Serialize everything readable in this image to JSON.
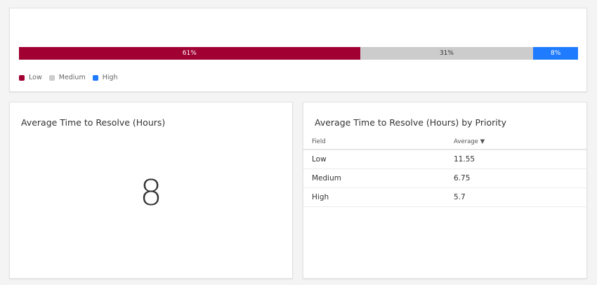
{
  "distribution": {
    "segments": [
      {
        "name": "Low",
        "percent": 61,
        "label": "61%",
        "color": "#a10033",
        "text_color": "#ffffff"
      },
      {
        "name": "Medium",
        "percent": 31,
        "label": "31%",
        "color": "#cccccc",
        "text_color": "#333333"
      },
      {
        "name": "High",
        "percent": 8,
        "label": "8%",
        "color": "#1f7bff",
        "text_color": "#ffffff"
      }
    ],
    "legend": [
      "Low",
      "Medium",
      "High"
    ]
  },
  "avg_widget": {
    "title": "Average Time to Resolve (Hours)",
    "value": "8"
  },
  "priority_widget": {
    "title": "Average Time to Resolve (Hours) by Priority",
    "columns": [
      "Field",
      "Average"
    ],
    "sort_icon": "▼",
    "rows": [
      [
        "Low",
        "11.55"
      ],
      [
        "Medium",
        "6.75"
      ],
      [
        "High",
        "5.7"
      ]
    ]
  }
}
